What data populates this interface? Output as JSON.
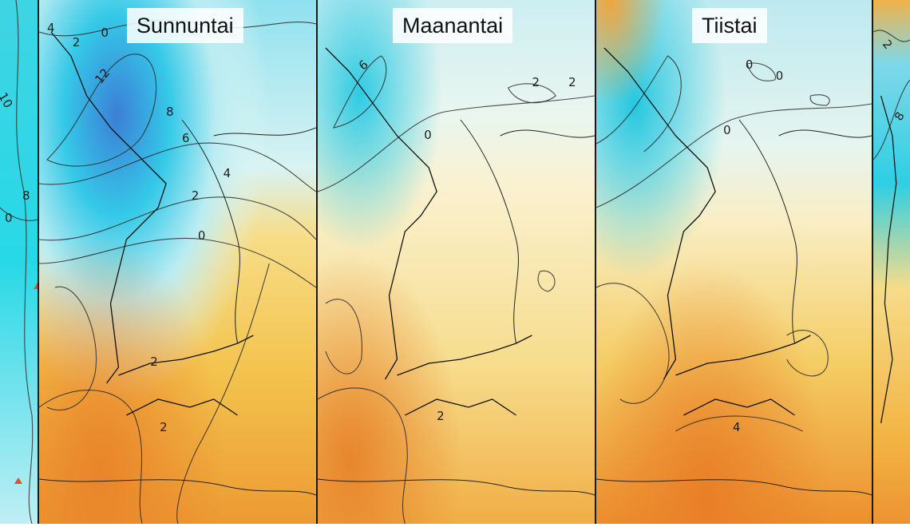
{
  "panels": [
    {
      "id": "prev",
      "day_label": ""
    },
    {
      "id": "sunday",
      "day_label": "Sunnuntai"
    },
    {
      "id": "monday",
      "day_label": "Maanantai"
    },
    {
      "id": "tuesday",
      "day_label": "Tiistai"
    },
    {
      "id": "next",
      "day_label": ""
    }
  ],
  "contour_labels": {
    "prev": [
      "10",
      "8",
      "0"
    ],
    "sunday": [
      "4",
      "2",
      "0",
      "12",
      "8",
      "6",
      "4",
      "2",
      "0",
      "2",
      "2"
    ],
    "monday": [
      "6",
      "2",
      "2",
      "0",
      "2"
    ],
    "tuesday": [
      "0",
      "0",
      "0",
      "4"
    ],
    "next": [
      "2",
      "8"
    ]
  },
  "colors": {
    "cold_deep": "#3b7fd6",
    "cold": "#27d6e4",
    "cool": "#b9ecf2",
    "neutral": "#fbf6e0",
    "mild": "#f7de8c",
    "warm": "#f2bc42",
    "warmer": "#ea8c2c"
  }
}
